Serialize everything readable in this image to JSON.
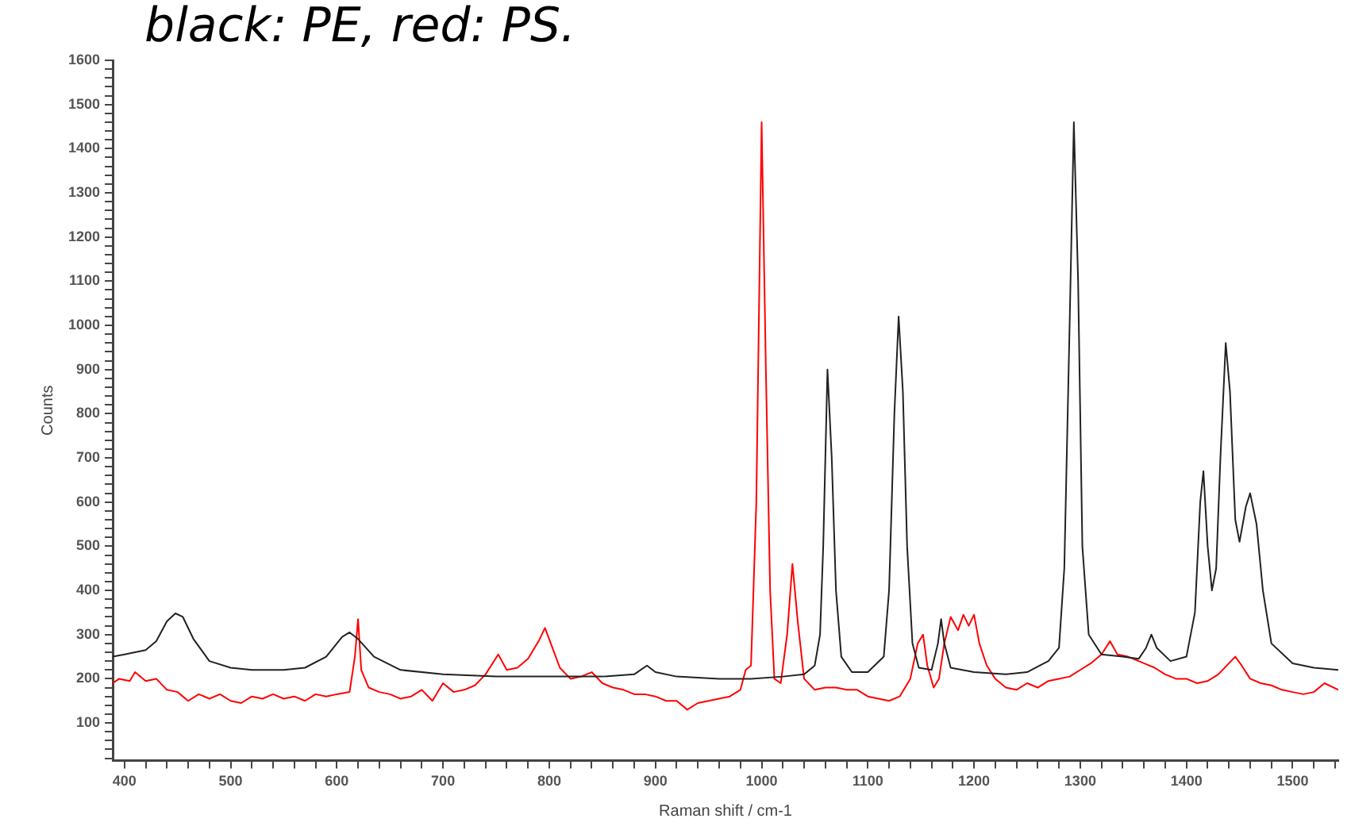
{
  "chart_data": {
    "type": "line",
    "title": "black: PE, red: PS.",
    "xlabel": "Raman shift / cm-1",
    "ylabel": "Counts",
    "xlim": [
      389,
      1543
    ],
    "ylim": [
      15,
      1600
    ],
    "grid": false,
    "legend": false,
    "marker": "none",
    "line_style": "solid",
    "xticks": [
      400,
      {
        "value": 420,
        "label": null
      },
      {
        "value": 440,
        "label": null
      },
      {
        "value": 460,
        "label": null
      },
      {
        "value": 480,
        "label": null
      },
      500,
      {
        "value": 520,
        "label": null
      },
      {
        "value": 540,
        "label": null
      },
      {
        "value": 560,
        "label": null
      },
      {
        "value": 580,
        "label": null
      },
      600,
      {
        "value": 620,
        "label": null
      },
      {
        "value": 640,
        "label": null
      },
      {
        "value": 660,
        "label": null
      },
      {
        "value": 680,
        "label": null
      },
      700,
      {
        "value": 720,
        "label": null
      },
      {
        "value": 740,
        "label": null
      },
      {
        "value": 760,
        "label": null
      },
      {
        "value": 780,
        "label": null
      },
      800,
      {
        "value": 820,
        "label": null
      },
      {
        "value": 840,
        "label": null
      },
      {
        "value": 860,
        "label": null
      },
      {
        "value": 880,
        "label": null
      },
      900,
      {
        "value": 920,
        "label": null
      },
      {
        "value": 940,
        "label": null
      },
      {
        "value": 960,
        "label": null
      },
      {
        "value": 980,
        "label": null
      },
      1000,
      {
        "value": 1020,
        "label": null
      },
      {
        "value": 1040,
        "label": null
      },
      {
        "value": 1060,
        "label": null
      },
      {
        "value": 1080,
        "label": null
      },
      1100,
      {
        "value": 1120,
        "label": null
      },
      {
        "value": 1140,
        "label": null
      },
      {
        "value": 1160,
        "label": null
      },
      {
        "value": 1180,
        "label": null
      },
      1200,
      {
        "value": 1220,
        "label": null
      },
      {
        "value": 1240,
        "label": null
      },
      {
        "value": 1260,
        "label": null
      },
      {
        "value": 1280,
        "label": null
      },
      1300,
      {
        "value": 1320,
        "label": null
      },
      {
        "value": 1340,
        "label": null
      },
      {
        "value": 1360,
        "label": null
      },
      {
        "value": 1380,
        "label": null
      },
      1400,
      {
        "value": 1420,
        "label": null
      },
      {
        "value": 1440,
        "label": null
      },
      {
        "value": 1460,
        "label": null
      },
      {
        "value": 1480,
        "label": null
      },
      1500,
      {
        "value": 1520,
        "label": null
      },
      {
        "value": 1540,
        "label": null
      }
    ],
    "yticks": [
      {
        "value": 20,
        "label": null
      },
      {
        "value": 40,
        "label": null
      },
      {
        "value": 60,
        "label": null
      },
      {
        "value": 80,
        "label": null
      },
      100,
      {
        "value": 120,
        "label": null
      },
      {
        "value": 140,
        "label": null
      },
      {
        "value": 160,
        "label": null
      },
      {
        "value": 180,
        "label": null
      },
      200,
      {
        "value": 220,
        "label": null
      },
      {
        "value": 240,
        "label": null
      },
      {
        "value": 260,
        "label": null
      },
      {
        "value": 280,
        "label": null
      },
      300,
      {
        "value": 320,
        "label": null
      },
      {
        "value": 340,
        "label": null
      },
      {
        "value": 360,
        "label": null
      },
      {
        "value": 380,
        "label": null
      },
      400,
      {
        "value": 420,
        "label": null
      },
      {
        "value": 440,
        "label": null
      },
      {
        "value": 460,
        "label": null
      },
      {
        "value": 480,
        "label": null
      },
      500,
      {
        "value": 520,
        "label": null
      },
      {
        "value": 540,
        "label": null
      },
      {
        "value": 560,
        "label": null
      },
      {
        "value": 580,
        "label": null
      },
      600,
      {
        "value": 620,
        "label": null
      },
      {
        "value": 640,
        "label": null
      },
      {
        "value": 660,
        "label": null
      },
      {
        "value": 680,
        "label": null
      },
      700,
      {
        "value": 720,
        "label": null
      },
      {
        "value": 740,
        "label": null
      },
      {
        "value": 760,
        "label": null
      },
      {
        "value": 780,
        "label": null
      },
      800,
      {
        "value": 820,
        "label": null
      },
      {
        "value": 840,
        "label": null
      },
      {
        "value": 860,
        "label": null
      },
      {
        "value": 880,
        "label": null
      },
      900,
      {
        "value": 920,
        "label": null
      },
      {
        "value": 940,
        "label": null
      },
      {
        "value": 960,
        "label": null
      },
      {
        "value": 980,
        "label": null
      },
      1000,
      {
        "value": 1020,
        "label": null
      },
      {
        "value": 1040,
        "label": null
      },
      {
        "value": 1060,
        "label": null
      },
      {
        "value": 1080,
        "label": null
      },
      1100,
      {
        "value": 1120,
        "label": null
      },
      {
        "value": 1140,
        "label": null
      },
      {
        "value": 1160,
        "label": null
      },
      {
        "value": 1180,
        "label": null
      },
      1200,
      {
        "value": 1220,
        "label": null
      },
      {
        "value": 1240,
        "label": null
      },
      {
        "value": 1260,
        "label": null
      },
      {
        "value": 1280,
        "label": null
      },
      1300,
      {
        "value": 1320,
        "label": null
      },
      {
        "value": 1340,
        "label": null
      },
      {
        "value": 1360,
        "label": null
      },
      {
        "value": 1380,
        "label": null
      },
      1400,
      {
        "value": 1420,
        "label": null
      },
      {
        "value": 1440,
        "label": null
      },
      {
        "value": 1460,
        "label": null
      },
      {
        "value": 1480,
        "label": null
      },
      1500,
      {
        "value": 1520,
        "label": null
      },
      {
        "value": 1540,
        "label": null
      },
      {
        "value": 1560,
        "label": null
      },
      {
        "value": 1580,
        "label": null
      },
      1600
    ],
    "series": [
      {
        "color": "#222222",
        "x": [
          389,
          400,
          420,
          430,
          440,
          448,
          455,
          465,
          480,
          500,
          520,
          550,
          570,
          590,
          605,
          612,
          620,
          635,
          660,
          700,
          750,
          800,
          850,
          880,
          892,
          900,
          920,
          960,
          990,
          1020,
          1040,
          1050,
          1055,
          1058,
          1062,
          1066,
          1070,
          1075,
          1085,
          1100,
          1115,
          1120,
          1125,
          1129,
          1133,
          1137,
          1142,
          1148,
          1160,
          1166,
          1169,
          1172,
          1178,
          1200,
          1230,
          1250,
          1262,
          1270,
          1280,
          1285,
          1290,
          1294,
          1298,
          1302,
          1308,
          1320,
          1340,
          1355,
          1362,
          1367,
          1372,
          1385,
          1400,
          1408,
          1413,
          1416,
          1420,
          1424,
          1428,
          1432,
          1437,
          1441,
          1446,
          1450,
          1456,
          1460,
          1466,
          1472,
          1480,
          1500,
          1520,
          1543
        ],
        "values": [
          250,
          255,
          265,
          285,
          330,
          348,
          340,
          290,
          240,
          225,
          220,
          220,
          225,
          250,
          295,
          305,
          290,
          250,
          220,
          210,
          205,
          205,
          205,
          210,
          230,
          215,
          205,
          200,
          200,
          205,
          210,
          230,
          300,
          500,
          900,
          700,
          400,
          250,
          215,
          215,
          250,
          400,
          800,
          1020,
          850,
          500,
          280,
          225,
          220,
          280,
          335,
          280,
          225,
          215,
          210,
          215,
          230,
          240,
          270,
          450,
          1000,
          1460,
          1100,
          500,
          300,
          255,
          250,
          245,
          270,
          300,
          270,
          240,
          250,
          350,
          600,
          670,
          500,
          400,
          450,
          700,
          960,
          850,
          560,
          510,
          590,
          620,
          550,
          400,
          280,
          235,
          225,
          220
        ]
      },
      {
        "color": "#ff0000",
        "x": [
          389,
          395,
          405,
          410,
          420,
          430,
          440,
          450,
          460,
          470,
          480,
          490,
          500,
          510,
          520,
          530,
          540,
          550,
          560,
          570,
          580,
          590,
          600,
          612,
          617,
          620,
          623,
          630,
          640,
          650,
          660,
          670,
          680,
          690,
          700,
          710,
          720,
          730,
          740,
          752,
          760,
          770,
          780,
          790,
          796,
          803,
          810,
          820,
          830,
          840,
          850,
          860,
          870,
          880,
          890,
          900,
          910,
          920,
          930,
          940,
          950,
          960,
          970,
          980,
          985,
          990,
          995,
          1000,
          1004,
          1008,
          1012,
          1018,
          1024,
          1029,
          1034,
          1040,
          1050,
          1060,
          1070,
          1080,
          1090,
          1100,
          1110,
          1120,
          1130,
          1140,
          1147,
          1152,
          1156,
          1162,
          1167,
          1172,
          1178,
          1185,
          1190,
          1195,
          1200,
          1205,
          1212,
          1220,
          1230,
          1240,
          1250,
          1260,
          1270,
          1280,
          1290,
          1300,
          1310,
          1320,
          1328,
          1335,
          1345,
          1360,
          1370,
          1380,
          1390,
          1400,
          1410,
          1420,
          1430,
          1440,
          1446,
          1452,
          1460,
          1470,
          1480,
          1490,
          1500,
          1510,
          1520,
          1530,
          1543
        ],
        "values": [
          190,
          200,
          195,
          215,
          195,
          200,
          175,
          170,
          150,
          165,
          155,
          165,
          150,
          145,
          160,
          155,
          165,
          155,
          160,
          150,
          165,
          160,
          165,
          170,
          250,
          335,
          220,
          180,
          170,
          165,
          155,
          160,
          175,
          150,
          190,
          170,
          175,
          185,
          210,
          255,
          220,
          225,
          245,
          285,
          315,
          270,
          225,
          200,
          205,
          215,
          190,
          180,
          175,
          165,
          165,
          160,
          150,
          150,
          130,
          145,
          150,
          155,
          160,
          175,
          220,
          230,
          600,
          1460,
          900,
          400,
          200,
          190,
          300,
          460,
          330,
          200,
          175,
          180,
          180,
          175,
          175,
          160,
          155,
          150,
          160,
          200,
          280,
          300,
          230,
          180,
          200,
          280,
          340,
          310,
          345,
          320,
          345,
          280,
          230,
          200,
          180,
          175,
          190,
          180,
          195,
          200,
          205,
          220,
          235,
          255,
          285,
          255,
          250,
          235,
          225,
          210,
          200,
          200,
          190,
          195,
          210,
          235,
          250,
          230,
          200,
          190,
          185,
          175,
          170,
          165,
          170,
          190,
          175
        ]
      }
    ]
  }
}
